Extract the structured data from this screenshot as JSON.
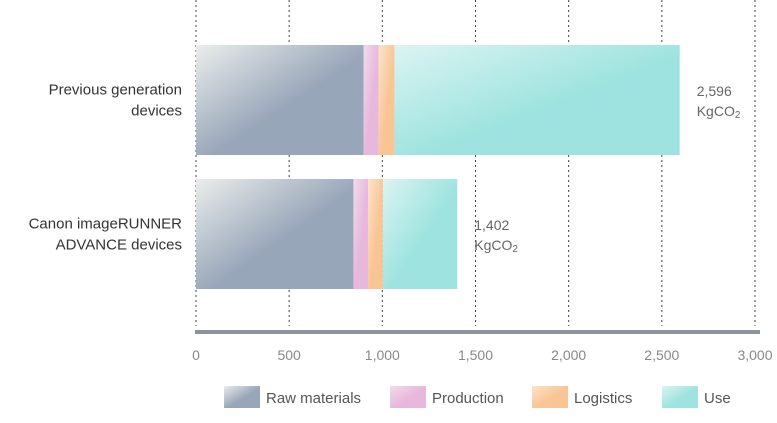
{
  "chart_data": {
    "type": "bar",
    "orientation": "horizontal",
    "stacked": true,
    "categories": [
      [
        "Previous generation",
        "devices"
      ],
      [
        "Canon imageRUNNER",
        "ADVANCE devices"
      ]
    ],
    "series": [
      {
        "name": "Raw materials",
        "values": [
          900,
          845
        ],
        "color": "#98a6b9",
        "color_light": "#eaedeb"
      },
      {
        "name": "Production",
        "values": [
          80,
          78
        ],
        "color": "#e7b7dc",
        "color_light": "#f1dbeb"
      },
      {
        "name": "Logistics",
        "values": [
          85,
          80
        ],
        "color": "#f9c595",
        "color_light": "#fce3cb"
      },
      {
        "name": "Use",
        "values": [
          1531,
          399
        ],
        "color": "#9ee3df",
        "color_light": "#dbf4f2"
      }
    ],
    "totals": [
      {
        "value": "2,596",
        "unit": "KgCO",
        "sub": "2"
      },
      {
        "value": "1,402",
        "unit": "KgCO",
        "sub": "2"
      }
    ],
    "xlim": [
      0,
      3000
    ],
    "xticks": [
      0,
      500,
      1000,
      1500,
      2000,
      2500,
      3000
    ],
    "xtick_labels": [
      "0",
      "500",
      "1,000",
      "1,500",
      "2,000",
      "2,500",
      "3,000"
    ],
    "grid": true,
    "grid_style": "dotted",
    "legend_position": "bottom",
    "title": "",
    "xlabel": "",
    "ylabel": ""
  }
}
